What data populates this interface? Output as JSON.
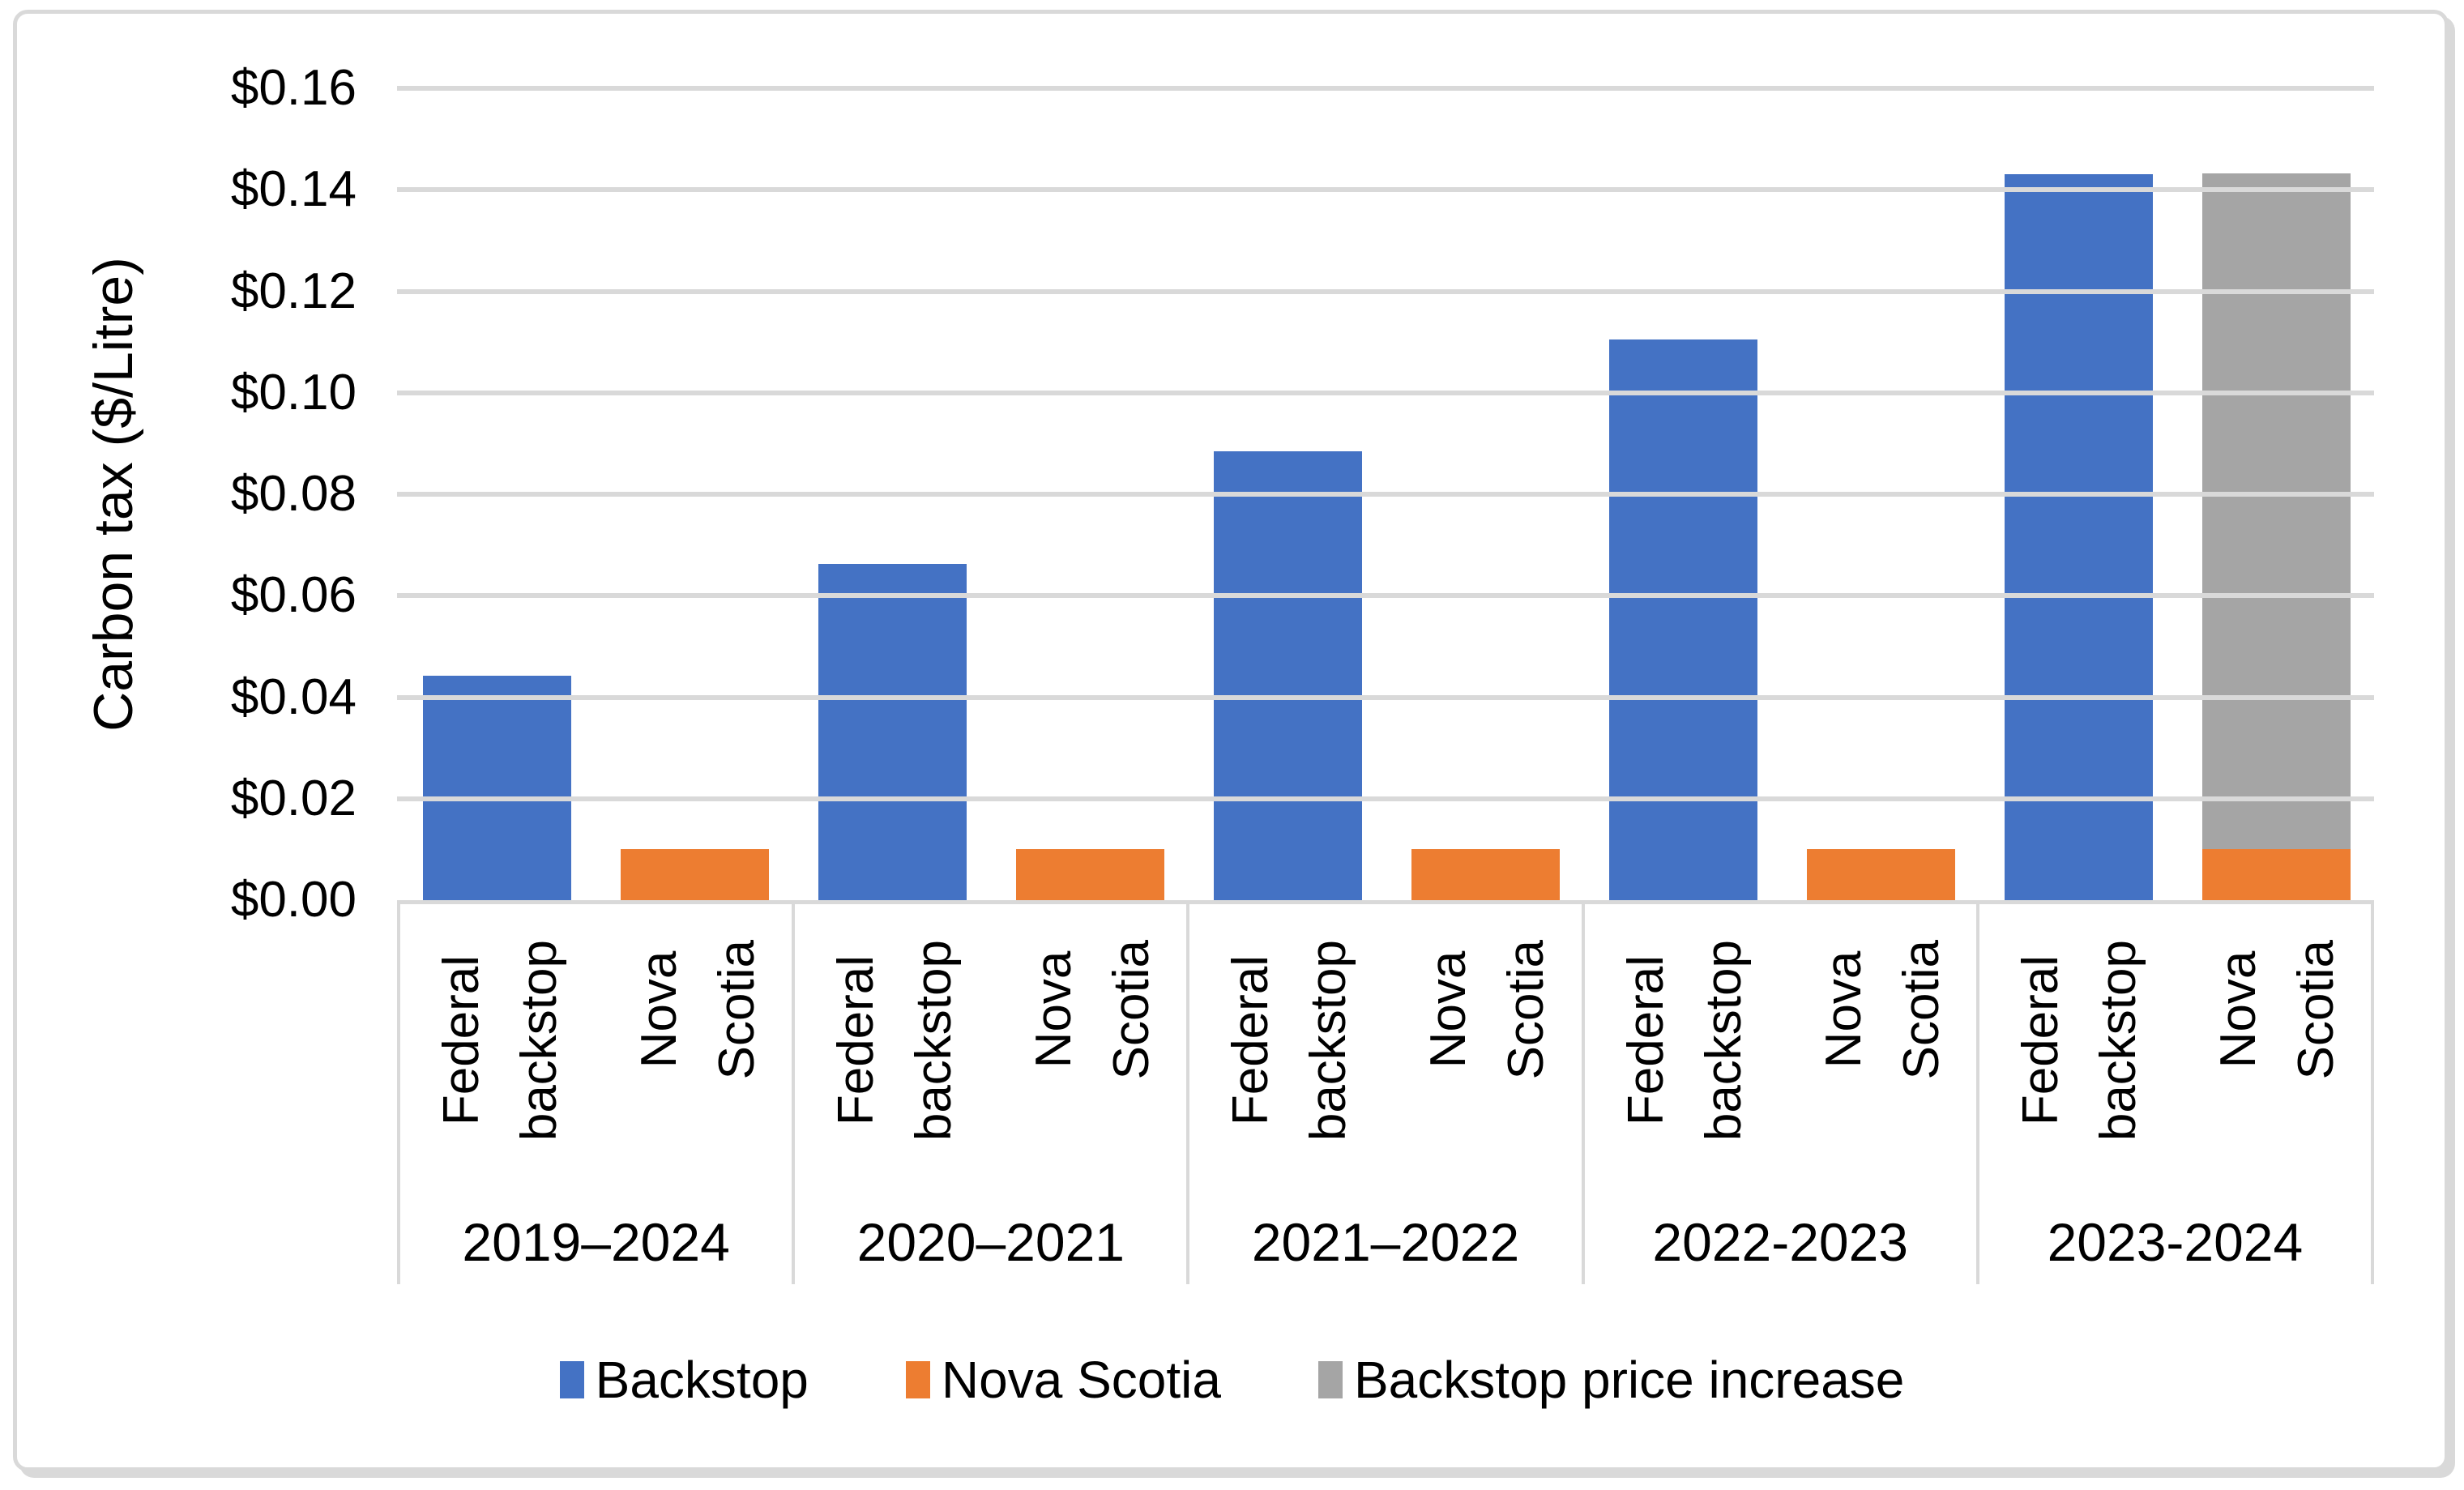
{
  "chart_data": {
    "type": "bar",
    "title": "",
    "ylabel": "Carbon tax ($/Litre)",
    "xlabel": "",
    "ylim": [
      0,
      0.16
    ],
    "ytick_step": 0.02,
    "yticks_top_to_bottom": [
      "$0.16",
      "$0.14",
      "$0.12",
      "$0.10",
      "$0.08",
      "$0.06",
      "$0.04",
      "$0.02",
      "$0.00"
    ],
    "grid": true,
    "legend_position": "bottom",
    "series": [
      {
        "name": "Backstop",
        "color": "#4472C4"
      },
      {
        "name": "Nova Scotia",
        "color": "#ED7D31"
      },
      {
        "name": "Backstop price increase",
        "color": "#A5A5A5"
      }
    ],
    "groups": [
      {
        "label": "2019–2024",
        "bars": [
          {
            "category": "Federal backstop",
            "label_lines": [
              "Federal",
              "backstop"
            ],
            "segments": [
              {
                "series": "Backstop",
                "value": 0.0442
              }
            ]
          },
          {
            "category": "Nova Scotia",
            "label_lines": [
              "Nova",
              "Scotia"
            ],
            "segments": [
              {
                "series": "Nova Scotia",
                "value": 0.01
              }
            ]
          }
        ]
      },
      {
        "label": "2020–2021",
        "bars": [
          {
            "category": "Federal backstop",
            "label_lines": [
              "Federal",
              "backstop"
            ],
            "segments": [
              {
                "series": "Backstop",
                "value": 0.0663
              }
            ]
          },
          {
            "category": "Nova Scotia",
            "label_lines": [
              "Nova",
              "Scotia"
            ],
            "segments": [
              {
                "series": "Nova Scotia",
                "value": 0.01
              }
            ]
          }
        ]
      },
      {
        "label": "2021–2022",
        "bars": [
          {
            "category": "Federal backstop",
            "label_lines": [
              "Federal",
              "backstop"
            ],
            "segments": [
              {
                "series": "Backstop",
                "value": 0.0884
              }
            ]
          },
          {
            "category": "Nova Scotia",
            "label_lines": [
              "Nova",
              "Scotia"
            ],
            "segments": [
              {
                "series": "Nova Scotia",
                "value": 0.01
              }
            ]
          }
        ]
      },
      {
        "label": "2022-2023",
        "bars": [
          {
            "category": "Federal backstop",
            "label_lines": [
              "Federal",
              "backstop"
            ],
            "segments": [
              {
                "series": "Backstop",
                "value": 0.1105
              }
            ]
          },
          {
            "category": "Nova Scotia",
            "label_lines": [
              "Nova",
              "Scotia"
            ],
            "segments": [
              {
                "series": "Nova Scotia",
                "value": 0.01
              }
            ]
          }
        ]
      },
      {
        "label": "2023-2024",
        "bars": [
          {
            "category": "Federal backstop",
            "label_lines": [
              "Federal",
              "backstop"
            ],
            "segments": [
              {
                "series": "Backstop",
                "value": 0.1431
              }
            ]
          },
          {
            "category": "Nova Scotia",
            "label_lines": [
              "Nova",
              "Scotia"
            ],
            "segments": [
              {
                "series": "Nova Scotia",
                "value": 0.01
              },
              {
                "series": "Backstop price increase",
                "value": 0.1331
              }
            ]
          }
        ]
      }
    ],
    "colors": {
      "gridline": "#D9D9D9",
      "axis": "#D9D9D9",
      "frame_border": "#D9D9D9",
      "text": "#000000"
    }
  }
}
